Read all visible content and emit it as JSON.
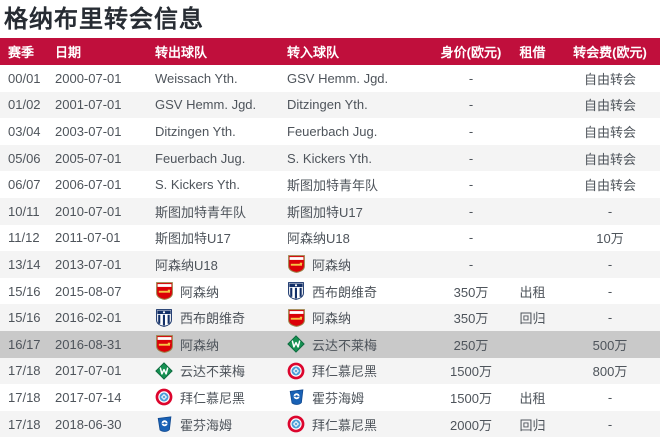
{
  "title": "格纳布里转会信息",
  "colors": {
    "header_bg": "#c00f3c",
    "header_text": "#ffffff",
    "row_alt_bg": "#f4f4f4",
    "row_highlight_bg": "#c9c9c9",
    "body_text": "#4e545b",
    "title_text": "#272c33"
  },
  "logos": {
    "arsenal": {
      "icon": "arsenal-crest-icon",
      "color": "#db0007"
    },
    "wba": {
      "icon": "west-brom-crest-icon",
      "color": "#122f67"
    },
    "werder": {
      "icon": "werder-bremen-crest-icon",
      "color": "#169152"
    },
    "bayern": {
      "icon": "bayern-munich-crest-icon",
      "color": "#dc052d"
    },
    "hoffenheim": {
      "icon": "hoffenheim-crest-icon",
      "color": "#1961b5"
    }
  },
  "table": {
    "columns": [
      "赛季",
      "日期",
      "转出球队",
      "转入球队",
      "身价(欧元)",
      "租借",
      "转会费(欧元)"
    ],
    "rows": [
      {
        "season": "00/01",
        "date": "2000-07-01",
        "out": {
          "name": "Weissach Yth.",
          "logo": null
        },
        "in": {
          "name": "GSV Hemm. Jgd.",
          "logo": null
        },
        "value": "-",
        "loan": "",
        "fee": "自由转会",
        "highlight": false
      },
      {
        "season": "01/02",
        "date": "2001-07-01",
        "out": {
          "name": "GSV Hemm. Jgd.",
          "logo": null
        },
        "in": {
          "name": "Ditzingen Yth.",
          "logo": null
        },
        "value": "-",
        "loan": "",
        "fee": "自由转会",
        "highlight": false
      },
      {
        "season": "03/04",
        "date": "2003-07-01",
        "out": {
          "name": "Ditzingen Yth.",
          "logo": null
        },
        "in": {
          "name": "Feuerbach Jug.",
          "logo": null
        },
        "value": "-",
        "loan": "",
        "fee": "自由转会",
        "highlight": false
      },
      {
        "season": "05/06",
        "date": "2005-07-01",
        "out": {
          "name": "Feuerbach Jug.",
          "logo": null
        },
        "in": {
          "name": "S. Kickers Yth.",
          "logo": null
        },
        "value": "-",
        "loan": "",
        "fee": "自由转会",
        "highlight": false
      },
      {
        "season": "06/07",
        "date": "2006-07-01",
        "out": {
          "name": "S. Kickers Yth.",
          "logo": null
        },
        "in": {
          "name": "斯图加特青年队",
          "logo": null
        },
        "value": "-",
        "loan": "",
        "fee": "自由转会",
        "highlight": false
      },
      {
        "season": "10/11",
        "date": "2010-07-01",
        "out": {
          "name": "斯图加特青年队",
          "logo": null
        },
        "in": {
          "name": "斯图加特U17",
          "logo": null
        },
        "value": "-",
        "loan": "",
        "fee": "-",
        "highlight": false
      },
      {
        "season": "11/12",
        "date": "2011-07-01",
        "out": {
          "name": "斯图加特U17",
          "logo": null
        },
        "in": {
          "name": "阿森纳U18",
          "logo": null
        },
        "value": "-",
        "loan": "",
        "fee": "10万",
        "highlight": false
      },
      {
        "season": "13/14",
        "date": "2013-07-01",
        "out": {
          "name": "阿森纳U18",
          "logo": null
        },
        "in": {
          "name": "阿森纳",
          "logo": "arsenal"
        },
        "value": "-",
        "loan": "",
        "fee": "-",
        "highlight": false
      },
      {
        "season": "15/16",
        "date": "2015-08-07",
        "out": {
          "name": "阿森纳",
          "logo": "arsenal"
        },
        "in": {
          "name": "西布朗维奇",
          "logo": "wba"
        },
        "value": "350万",
        "loan": "出租",
        "fee": "-",
        "highlight": false
      },
      {
        "season": "15/16",
        "date": "2016-02-01",
        "out": {
          "name": "西布朗维奇",
          "logo": "wba"
        },
        "in": {
          "name": "阿森纳",
          "logo": "arsenal"
        },
        "value": "350万",
        "loan": "回归",
        "fee": "-",
        "highlight": false
      },
      {
        "season": "16/17",
        "date": "2016-08-31",
        "out": {
          "name": "阿森纳",
          "logo": "arsenal"
        },
        "in": {
          "name": "云达不莱梅",
          "logo": "werder"
        },
        "value": "250万",
        "loan": "",
        "fee": "500万",
        "highlight": true
      },
      {
        "season": "17/18",
        "date": "2017-07-01",
        "out": {
          "name": "云达不莱梅",
          "logo": "werder"
        },
        "in": {
          "name": "拜仁慕尼黑",
          "logo": "bayern"
        },
        "value": "1500万",
        "loan": "",
        "fee": "800万",
        "highlight": false
      },
      {
        "season": "17/18",
        "date": "2017-07-14",
        "out": {
          "name": "拜仁慕尼黑",
          "logo": "bayern"
        },
        "in": {
          "name": "霍芬海姆",
          "logo": "hoffenheim"
        },
        "value": "1500万",
        "loan": "出租",
        "fee": "-",
        "highlight": false
      },
      {
        "season": "17/18",
        "date": "2018-06-30",
        "out": {
          "name": "霍芬海姆",
          "logo": "hoffenheim"
        },
        "in": {
          "name": "拜仁慕尼黑",
          "logo": "bayern"
        },
        "value": "2000万",
        "loan": "回归",
        "fee": "-",
        "highlight": false
      }
    ]
  }
}
